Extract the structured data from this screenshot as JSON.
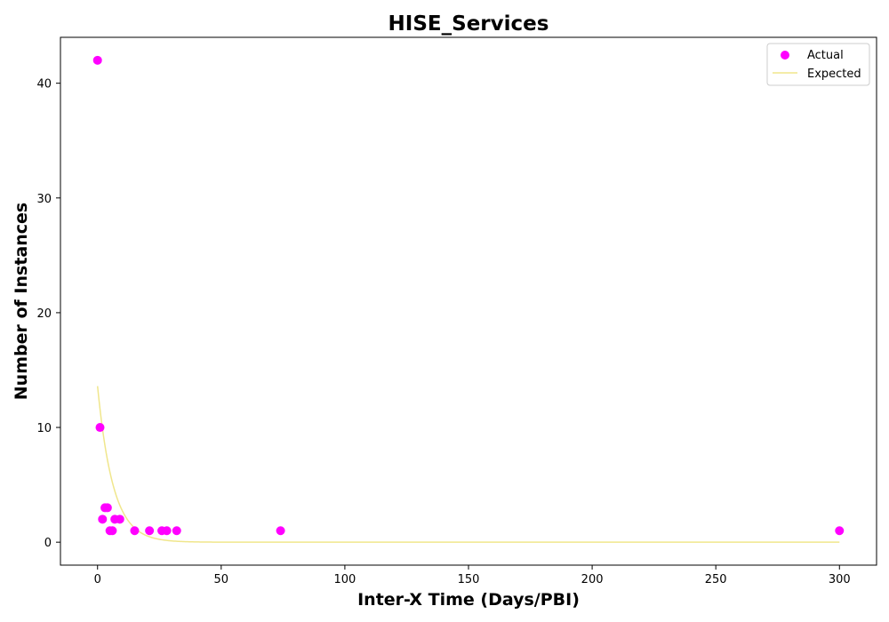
{
  "chart_data": {
    "type": "scatter",
    "title": "HISE_Services",
    "xlabel": "Inter-X Time (Days/PBI)",
    "ylabel": "Number of Instances",
    "xlim": [
      -15,
      315
    ],
    "ylim": [
      -2,
      44
    ],
    "xticks": [
      0,
      50,
      100,
      150,
      200,
      250,
      300
    ],
    "yticks": [
      0,
      10,
      20,
      30,
      40
    ],
    "grid": false,
    "legend_position": "top-right",
    "series": [
      {
        "name": "Actual",
        "kind": "scatter",
        "color": "#ff00ff",
        "points": [
          {
            "x": 0,
            "y": 42
          },
          {
            "x": 1,
            "y": 10
          },
          {
            "x": 2,
            "y": 2
          },
          {
            "x": 3,
            "y": 3
          },
          {
            "x": 4,
            "y": 3
          },
          {
            "x": 5,
            "y": 1
          },
          {
            "x": 6,
            "y": 1
          },
          {
            "x": 7,
            "y": 2
          },
          {
            "x": 9,
            "y": 2
          },
          {
            "x": 15,
            "y": 1
          },
          {
            "x": 21,
            "y": 1
          },
          {
            "x": 26,
            "y": 1
          },
          {
            "x": 28,
            "y": 1
          },
          {
            "x": 32,
            "y": 1
          },
          {
            "x": 74,
            "y": 1
          },
          {
            "x": 300,
            "y": 1
          }
        ]
      },
      {
        "name": "Expected",
        "kind": "line",
        "color": "#f0e68c",
        "model": "exponential",
        "amplitude": 13.6,
        "rate": 0.16,
        "x_range": [
          0,
          300
        ]
      }
    ]
  }
}
